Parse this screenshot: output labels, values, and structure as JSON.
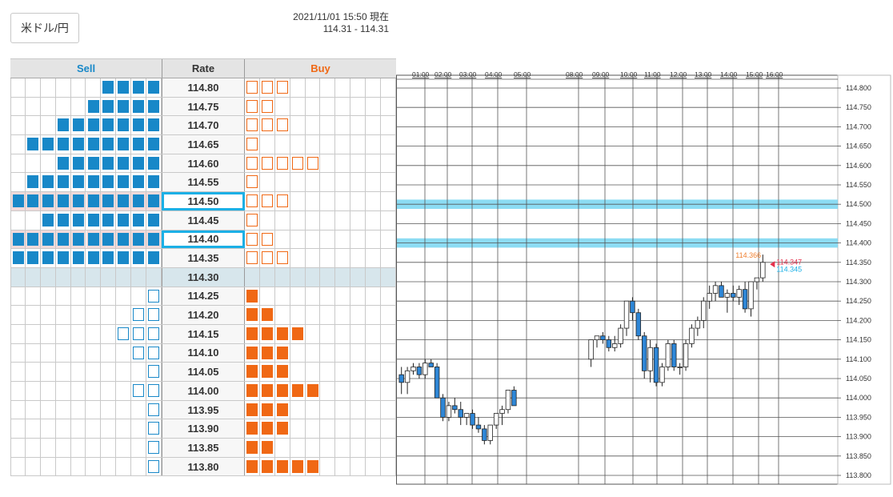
{
  "pair_button": "米ドル/円",
  "quote": {
    "timestamp": "2021/11/01 15:50 現在",
    "bid_ask": "114.31 - 114.31"
  },
  "orderbook": {
    "headers": {
      "sell": "Sell",
      "rate": "Rate",
      "buy": "Buy"
    },
    "colors": {
      "sell": "#1888c8",
      "buy": "#f06814",
      "highlight": "#1cb0e6",
      "pink_row": "#f2dada",
      "current_row": "#d7e6ec"
    },
    "rows": [
      {
        "rate": "114.80",
        "sell": 4,
        "buy": 3,
        "sell_type": "filled",
        "buy_type": "hollow"
      },
      {
        "rate": "114.75",
        "sell": 5,
        "buy": 2,
        "sell_type": "filled",
        "buy_type": "hollow"
      },
      {
        "rate": "114.70",
        "sell": 7,
        "buy": 3,
        "sell_type": "filled",
        "buy_type": "hollow"
      },
      {
        "rate": "114.65",
        "sell": 9,
        "buy": 1,
        "sell_type": "filled",
        "buy_type": "hollow"
      },
      {
        "rate": "114.60",
        "sell": 7,
        "buy": 5,
        "sell_type": "filled",
        "buy_type": "hollow"
      },
      {
        "rate": "114.55",
        "sell": 9,
        "buy": 1,
        "sell_type": "filled",
        "buy_type": "hollow"
      },
      {
        "rate": "114.50",
        "sell": 10,
        "buy": 3,
        "sell_type": "filled",
        "buy_type": "hollow",
        "highlight": true,
        "pink": true
      },
      {
        "rate": "114.45",
        "sell": 8,
        "buy": 1,
        "sell_type": "filled",
        "buy_type": "hollow"
      },
      {
        "rate": "114.40",
        "sell": 10,
        "buy": 2,
        "sell_type": "filled",
        "buy_type": "hollow",
        "highlight": true,
        "pink": true
      },
      {
        "rate": "114.35",
        "sell": 10,
        "buy": 3,
        "sell_type": "filled",
        "buy_type": "hollow"
      },
      {
        "rate": "114.30",
        "sell": 0,
        "buy": 0,
        "current": true
      },
      {
        "rate": "114.25",
        "sell": 1,
        "buy": 1,
        "sell_type": "hollow",
        "buy_type": "filled"
      },
      {
        "rate": "114.20",
        "sell": 2,
        "buy": 2,
        "sell_type": "hollow",
        "buy_type": "filled"
      },
      {
        "rate": "114.15",
        "sell": 3,
        "buy": 4,
        "sell_type": "hollow",
        "buy_type": "filled"
      },
      {
        "rate": "114.10",
        "sell": 2,
        "buy": 3,
        "sell_type": "hollow",
        "buy_type": "filled"
      },
      {
        "rate": "114.05",
        "sell": 1,
        "buy": 3,
        "sell_type": "hollow",
        "buy_type": "filled"
      },
      {
        "rate": "114.00",
        "sell": 2,
        "buy": 5,
        "sell_type": "hollow",
        "buy_type": "filled"
      },
      {
        "rate": "113.95",
        "sell": 1,
        "buy": 3,
        "sell_type": "hollow",
        "buy_type": "filled"
      },
      {
        "rate": "113.90",
        "sell": 1,
        "buy": 3,
        "sell_type": "hollow",
        "buy_type": "filled"
      },
      {
        "rate": "113.85",
        "sell": 1,
        "buy": 2,
        "sell_type": "hollow",
        "buy_type": "filled"
      },
      {
        "rate": "113.80",
        "sell": 1,
        "buy": 5,
        "sell_type": "hollow",
        "buy_type": "filled"
      }
    ]
  },
  "chart_data": {
    "type": "candlestick",
    "x_labels": [
      "01:00",
      "02:00",
      "03:00",
      "04:00",
      "05:00",
      "08:00",
      "09:00",
      "10:00",
      "11:00",
      "12:00",
      "13:00",
      "14:00",
      "15:00",
      "16:00"
    ],
    "y_ticks": [
      "114.800",
      "114.750",
      "114.700",
      "114.650",
      "114.600",
      "114.550",
      "114.500",
      "114.450",
      "114.400",
      "114.350",
      "114.300",
      "114.250",
      "114.200",
      "114.150",
      "114.100",
      "114.050",
      "114.000",
      "113.950",
      "113.900",
      "113.850",
      "113.800"
    ],
    "ylim": [
      113.78,
      114.82
    ],
    "highlight_bands": [
      114.5,
      114.4
    ],
    "annotations": {
      "high": "114.366",
      "bid": "114.347",
      "ask": "114.345"
    },
    "colors": {
      "up": "#ffffff",
      "down": "#2e86d6",
      "band": "#80d8f2",
      "high": "#f08030",
      "bid": "#e6304c",
      "ask": "#1cb0e6"
    },
    "candles": [
      [
        114.06,
        114.08,
        114.01,
        114.04
      ],
      [
        114.04,
        114.08,
        114.01,
        114.07
      ],
      [
        114.07,
        114.09,
        114.06,
        114.08
      ],
      [
        114.08,
        114.09,
        114.05,
        114.06
      ],
      [
        114.06,
        114.1,
        114.05,
        114.09
      ],
      [
        114.09,
        114.1,
        114.08,
        114.08
      ],
      [
        114.08,
        114.09,
        114.0,
        114.0
      ],
      [
        114.0,
        114.01,
        113.94,
        113.95
      ],
      [
        113.95,
        113.99,
        113.94,
        113.98
      ],
      [
        113.98,
        114.0,
        113.96,
        113.97
      ],
      [
        113.97,
        113.99,
        113.93,
        113.95
      ],
      [
        113.95,
        113.96,
        113.93,
        113.96
      ],
      [
        113.96,
        113.97,
        113.92,
        113.93
      ],
      [
        113.93,
        113.95,
        113.91,
        113.92
      ],
      [
        113.92,
        113.93,
        113.88,
        113.89
      ],
      [
        113.89,
        113.93,
        113.88,
        113.93
      ],
      [
        113.93,
        113.96,
        113.92,
        113.96
      ],
      [
        113.96,
        113.98,
        113.93,
        113.97
      ],
      [
        113.97,
        114.02,
        113.96,
        114.02
      ],
      [
        114.02,
        114.03,
        113.99,
        113.98
      ],
      [
        114.1,
        114.15,
        114.08,
        114.15
      ],
      [
        114.15,
        114.16,
        114.13,
        114.16
      ],
      [
        114.16,
        114.17,
        114.14,
        114.15
      ],
      [
        114.15,
        114.16,
        114.12,
        114.13
      ],
      [
        114.13,
        114.16,
        114.12,
        114.14
      ],
      [
        114.14,
        114.19,
        114.13,
        114.18
      ],
      [
        114.18,
        114.25,
        114.16,
        114.25
      ],
      [
        114.25,
        114.26,
        114.2,
        114.22
      ],
      [
        114.22,
        114.23,
        114.15,
        114.16
      ],
      [
        114.16,
        114.17,
        114.05,
        114.07
      ],
      [
        114.07,
        114.15,
        114.04,
        114.13
      ],
      [
        114.13,
        114.14,
        114.03,
        114.04
      ],
      [
        114.04,
        114.09,
        114.03,
        114.08
      ],
      [
        114.08,
        114.15,
        114.07,
        114.14
      ],
      [
        114.14,
        114.15,
        114.07,
        114.08
      ],
      [
        114.08,
        114.09,
        114.06,
        114.08
      ],
      [
        114.08,
        114.15,
        114.07,
        114.14
      ],
      [
        114.14,
        114.19,
        114.13,
        114.18
      ],
      [
        114.18,
        114.21,
        114.16,
        114.2
      ],
      [
        114.2,
        114.26,
        114.18,
        114.25
      ],
      [
        114.25,
        114.29,
        114.23,
        114.27
      ],
      [
        114.27,
        114.3,
        114.25,
        114.29
      ],
      [
        114.29,
        114.3,
        114.26,
        114.26
      ],
      [
        114.26,
        114.28,
        114.22,
        114.27
      ],
      [
        114.27,
        114.29,
        114.25,
        114.26
      ],
      [
        114.26,
        114.29,
        114.24,
        114.28
      ],
      [
        114.28,
        114.3,
        114.22,
        114.23
      ],
      [
        114.23,
        114.3,
        114.21,
        114.3
      ],
      [
        114.3,
        114.31,
        114.28,
        114.31
      ],
      [
        114.31,
        114.37,
        114.3,
        114.35
      ]
    ]
  }
}
